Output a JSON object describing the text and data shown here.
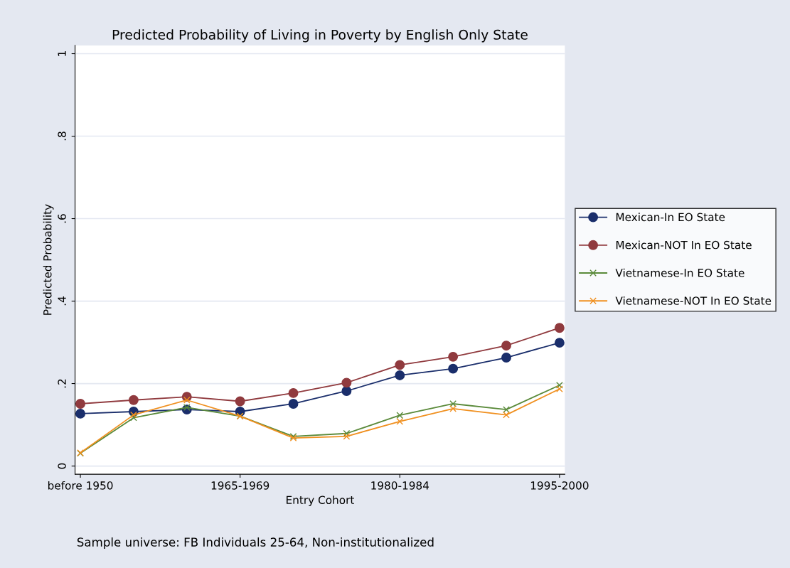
{
  "chart_data": {
    "type": "line",
    "title": "Predicted Probability of Living in Poverty by English Only State",
    "xlabel": "Entry Cohort",
    "ylabel": "Predicted Probability",
    "categories": [
      "before 1950",
      null,
      null,
      "1965-1969",
      null,
      null,
      "1980-1984",
      null,
      null,
      "1995-2000"
    ],
    "series": [
      {
        "name": "Mexican-In EO State",
        "color": "#1a2e6b",
        "marker": "circle",
        "values": [
          0.127,
          0.132,
          0.137,
          0.132,
          0.151,
          0.182,
          0.22,
          0.236,
          0.263,
          0.299
        ]
      },
      {
        "name": "Mexican-NOT In EO State",
        "color": "#903a3e",
        "marker": "circle",
        "values": [
          0.151,
          0.16,
          0.168,
          0.157,
          0.177,
          0.202,
          0.245,
          0.265,
          0.292,
          0.335
        ]
      },
      {
        "name": "Vietnamese-In EO State",
        "color": "#5a8a3a",
        "marker": "cross",
        "values": [
          0.031,
          0.117,
          0.142,
          0.121,
          0.072,
          0.079,
          0.123,
          0.151,
          0.137,
          0.196
        ]
      },
      {
        "name": "Vietnamese-NOT In EO State",
        "color": "#f09020",
        "marker": "cross",
        "values": [
          0.032,
          0.124,
          0.16,
          0.121,
          0.068,
          0.072,
          0.108,
          0.139,
          0.124,
          0.187
        ]
      }
    ],
    "ylim": [
      -0.02,
      1.02
    ],
    "yticks": [
      {
        "value": 0,
        "label": "0"
      },
      {
        "value": 0.2,
        "label": ".2"
      },
      {
        "value": 0.4,
        "label": ".4"
      },
      {
        "value": 0.6,
        "label": ".6"
      },
      {
        "value": 0.8,
        "label": ".8"
      },
      {
        "value": 1,
        "label": "1"
      }
    ],
    "grid": "y",
    "legend": "right",
    "annotations": [
      "Sample universe: FB Individuals 25-64, Non-institutionalized"
    ]
  }
}
